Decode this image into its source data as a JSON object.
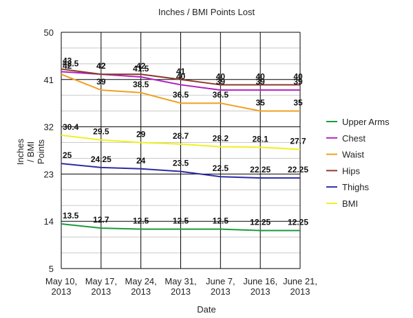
{
  "chart_data": {
    "type": "line",
    "title": "Inches / BMI Points Lost",
    "xlabel": "Date",
    "ylabel_lines": [
      "Inches",
      "/ BMI",
      "Points"
    ],
    "categories": [
      [
        "May 10,",
        "2013"
      ],
      [
        "May 17,",
        "2013"
      ],
      [
        "May 24,",
        "2013"
      ],
      [
        "May 31,",
        "2013"
      ],
      [
        "June 7,",
        "2013"
      ],
      [
        "June 16,",
        "2013"
      ],
      [
        "June 21,",
        "2013"
      ]
    ],
    "yticks": [
      5,
      14,
      23,
      32,
      41,
      50
    ],
    "ylim": [
      5,
      50
    ],
    "grid": true,
    "legend_position": "right",
    "series": [
      {
        "name": "Upper Arms",
        "color": "#1a9a3a",
        "values": [
          13.5,
          12.7,
          12.5,
          12.5,
          12.5,
          12.25,
          12.25
        ],
        "labels": [
          "13.5",
          "12.7",
          "12.5",
          "12.5",
          "12.5",
          "12.25",
          "12.25"
        ]
      },
      {
        "name": "Chest",
        "color": "#b020c0",
        "values": [
          42.5,
          42,
          41.5,
          40,
          39,
          39,
          39
        ],
        "labels": [
          "42.5",
          "42",
          "41.5",
          "40",
          "39",
          "39",
          "39"
        ]
      },
      {
        "name": "Waist",
        "color": "#f0a020",
        "values": [
          42,
          39,
          38.5,
          36.5,
          36.5,
          35,
          35
        ],
        "labels": [
          "42",
          "39",
          "38.5",
          "36.5",
          "36.5",
          "35",
          "35"
        ]
      },
      {
        "name": "Hips",
        "color": "#8b3a2a",
        "values": [
          43,
          42,
          42,
          41,
          40,
          40,
          40
        ],
        "labels": [
          "43",
          "42",
          "42",
          "41",
          "40",
          "40",
          "40"
        ]
      },
      {
        "name": "Thighs",
        "color": "#2a2aa8",
        "values": [
          25,
          24.25,
          24,
          23.5,
          22.5,
          22.25,
          22.25
        ],
        "labels": [
          "25",
          "24.25",
          "24",
          "23.5",
          "22.5",
          "22.25",
          "22.25"
        ]
      },
      {
        "name": "BMI",
        "color": "#f0f020",
        "values": [
          30.4,
          29.5,
          29,
          28.7,
          28.2,
          28.1,
          27.7
        ],
        "labels": [
          "30.4",
          "29.5",
          "29",
          "28.7",
          "28.2",
          "28.1",
          "27.7"
        ]
      }
    ]
  }
}
